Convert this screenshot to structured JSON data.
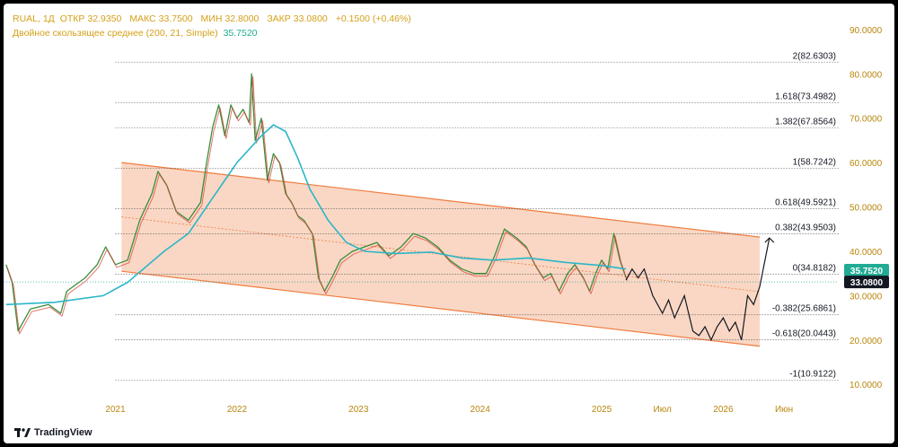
{
  "header": {
    "symbol": "RUAL, 1Д",
    "open_label": "ОТКР",
    "open": "32.9350",
    "high_label": "МАКС",
    "high": "33.7500",
    "low_label": "МИН",
    "low": "32.8000",
    "close_label": "ЗАКР",
    "close": "33.0800",
    "change": "+0.1500 (+0.46%)",
    "ma_label": "Двойное скользящее среднее (200, 21, Simple)",
    "ma_value": "35.7520"
  },
  "branding": {
    "logo_text": "TradingView"
  },
  "chart_data": {
    "type": "candlestick",
    "title": "RUAL, 1Д",
    "y_axis": {
      "range": [
        6,
        93
      ],
      "ticks": [
        "90.0000",
        "80.0000",
        "70.0000",
        "60.0000",
        "50.0000",
        "40.0000",
        "30.0000",
        "20.0000",
        "10.0000"
      ],
      "tick_values": [
        90,
        80,
        70,
        60,
        50,
        40,
        30,
        20,
        10
      ],
      "position": "right"
    },
    "x_axis": {
      "labels": [
        "2021",
        "2022",
        "2023",
        "2024",
        "2025",
        "Июл",
        "2026",
        "Июн"
      ],
      "label_dates": [
        2021.0,
        2022.0,
        2023.0,
        2024.0,
        2025.0,
        2025.5,
        2026.0,
        2026.5
      ],
      "range": [
        2020.08,
        2026.95
      ]
    },
    "fibonacci": [
      {
        "label": "2(82.6303)",
        "value": 82.6303
      },
      {
        "label": "1.618(73.4982)",
        "value": 73.4982
      },
      {
        "label": "1.382(67.8564)",
        "value": 67.8564
      },
      {
        "label": "1(58.7242)",
        "value": 58.7242
      },
      {
        "label": "0.618(49.5921)",
        "value": 49.5921
      },
      {
        "label": "0.382(43.9503)",
        "value": 43.9503
      },
      {
        "label": "0(34.8182)",
        "value": 34.8182
      },
      {
        "label": "-0.382(25.6861)",
        "value": 25.6861
      },
      {
        "label": "-0.618(20.0443)",
        "value": 20.0443
      },
      {
        "label": "-1(10.9122)",
        "value": 10.9122
      }
    ],
    "channel": {
      "upper": [
        [
          2021.05,
          60.0
        ],
        [
          2026.3,
          43.2
        ]
      ],
      "lower": [
        [
          2021.05,
          35.5
        ],
        [
          2026.3,
          18.6
        ]
      ],
      "mid": [
        [
          2021.05,
          47.75
        ],
        [
          2026.3,
          30.9
        ]
      ]
    },
    "price_labels": [
      {
        "text": "35.7520",
        "value": 35.752,
        "color": "#22ab94"
      },
      {
        "text": "33.0800",
        "value": 33.08,
        "color": "#131722"
      }
    ],
    "last_price_line": 33.08,
    "price_series": [
      [
        2020.1,
        37
      ],
      [
        2020.15,
        33
      ],
      [
        2020.2,
        22
      ],
      [
        2020.3,
        27
      ],
      [
        2020.45,
        28
      ],
      [
        2020.55,
        26
      ],
      [
        2020.6,
        31
      ],
      [
        2020.75,
        34
      ],
      [
        2020.85,
        37
      ],
      [
        2020.92,
        41
      ],
      [
        2021.0,
        37
      ],
      [
        2021.1,
        38
      ],
      [
        2021.2,
        47
      ],
      [
        2021.3,
        53
      ],
      [
        2021.35,
        58
      ],
      [
        2021.42,
        55
      ],
      [
        2021.5,
        49
      ],
      [
        2021.6,
        47
      ],
      [
        2021.7,
        51
      ],
      [
        2021.75,
        60
      ],
      [
        2021.8,
        68
      ],
      [
        2021.85,
        73
      ],
      [
        2021.9,
        66
      ],
      [
        2021.95,
        73
      ],
      [
        2022.0,
        70
      ],
      [
        2022.05,
        72
      ],
      [
        2022.1,
        69
      ],
      [
        2022.12,
        80
      ],
      [
        2022.15,
        65
      ],
      [
        2022.2,
        70
      ],
      [
        2022.25,
        56
      ],
      [
        2022.3,
        62
      ],
      [
        2022.35,
        60
      ],
      [
        2022.4,
        53
      ],
      [
        2022.45,
        51
      ],
      [
        2022.5,
        48
      ],
      [
        2022.55,
        47
      ],
      [
        2022.62,
        44
      ],
      [
        2022.67,
        34
      ],
      [
        2022.72,
        31
      ],
      [
        2022.78,
        34
      ],
      [
        2022.85,
        38
      ],
      [
        2022.95,
        40
      ],
      [
        2023.05,
        41
      ],
      [
        2023.15,
        42
      ],
      [
        2023.25,
        39
      ],
      [
        2023.35,
        41
      ],
      [
        2023.45,
        44
      ],
      [
        2023.55,
        43
      ],
      [
        2023.65,
        41
      ],
      [
        2023.75,
        38
      ],
      [
        2023.85,
        36
      ],
      [
        2023.95,
        35
      ],
      [
        2024.05,
        35
      ],
      [
        2024.12,
        39
      ],
      [
        2024.2,
        45
      ],
      [
        2024.3,
        43
      ],
      [
        2024.38,
        41
      ],
      [
        2024.45,
        37
      ],
      [
        2024.52,
        34
      ],
      [
        2024.58,
        35
      ],
      [
        2024.65,
        31
      ],
      [
        2024.72,
        35
      ],
      [
        2024.78,
        37
      ],
      [
        2024.85,
        34
      ],
      [
        2024.9,
        31
      ],
      [
        2024.95,
        35
      ],
      [
        2025.0,
        38
      ],
      [
        2025.05,
        36
      ],
      [
        2025.1,
        44
      ],
      [
        2025.15,
        38
      ],
      [
        2025.2,
        34
      ]
    ],
    "ma_series": [
      [
        2020.1,
        28
      ],
      [
        2020.5,
        28.5
      ],
      [
        2020.9,
        30
      ],
      [
        2021.1,
        33
      ],
      [
        2021.4,
        40
      ],
      [
        2021.6,
        44
      ],
      [
        2021.8,
        52
      ],
      [
        2022.0,
        60
      ],
      [
        2022.2,
        66
      ],
      [
        2022.3,
        68.5
      ],
      [
        2022.4,
        67
      ],
      [
        2022.5,
        61
      ],
      [
        2022.6,
        54
      ],
      [
        2022.75,
        47
      ],
      [
        2022.9,
        42
      ],
      [
        2023.05,
        40
      ],
      [
        2023.3,
        39.5
      ],
      [
        2023.6,
        39.8
      ],
      [
        2023.85,
        38.5
      ],
      [
        2024.1,
        38
      ],
      [
        2024.4,
        38.5
      ],
      [
        2024.7,
        37.5
      ],
      [
        2025.0,
        36.8
      ],
      [
        2025.2,
        36
      ]
    ],
    "projection": [
      [
        2025.2,
        33.5
      ],
      [
        2025.25,
        36
      ],
      [
        2025.3,
        34
      ],
      [
        2025.35,
        36
      ],
      [
        2025.42,
        30
      ],
      [
        2025.5,
        26
      ],
      [
        2025.55,
        29
      ],
      [
        2025.6,
        25
      ],
      [
        2025.68,
        30
      ],
      [
        2025.75,
        22
      ],
      [
        2025.8,
        21
      ],
      [
        2025.85,
        23
      ],
      [
        2025.9,
        20
      ],
      [
        2025.95,
        23
      ],
      [
        2026.0,
        25
      ],
      [
        2026.05,
        22
      ],
      [
        2026.1,
        24
      ],
      [
        2026.15,
        20
      ],
      [
        2026.2,
        30
      ],
      [
        2026.25,
        28
      ],
      [
        2026.3,
        32
      ],
      [
        2026.38,
        43
      ]
    ]
  }
}
